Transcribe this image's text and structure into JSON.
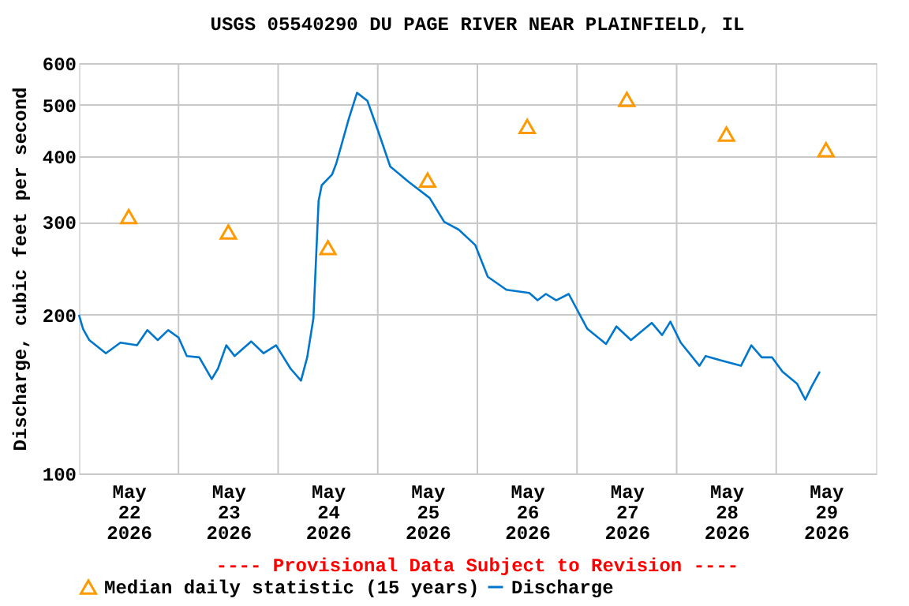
{
  "chart_data": {
    "type": "line",
    "title": "USGS 05540290 DU PAGE RIVER NEAR PLAINFIELD, IL",
    "ylabel": "Discharge, cubic feet per second",
    "annotations": [
      "---- Provisional Data Subject to Revision ----"
    ],
    "log": "y",
    "grid": true,
    "legend": "bottom",
    "ylim": [
      100,
      600
    ],
    "yticks": [
      100,
      200,
      300,
      400,
      500,
      600
    ],
    "xlim": [
      "2026-05-22T00:00",
      "2026-05-30T00:00"
    ],
    "xticks": [
      {
        "value": "2026-05-22T12:00",
        "label": "May\n22\n2026"
      },
      {
        "value": "2026-05-23T00:00",
        "label": null
      },
      {
        "value": "2026-05-23T12:00",
        "label": "May\n23\n2026"
      },
      {
        "value": "2026-05-24T00:00",
        "label": null
      },
      {
        "value": "2026-05-24T12:00",
        "label": "May\n24\n2026"
      },
      {
        "value": "2026-05-25T00:00",
        "label": null
      },
      {
        "value": "2026-05-25T12:00",
        "label": "May\n25\n2026"
      },
      {
        "value": "2026-05-26T00:00",
        "label": null
      },
      {
        "value": "2026-05-26T12:00",
        "label": "May\n26\n2026"
      },
      {
        "value": "2026-05-27T00:00",
        "label": null
      },
      {
        "value": "2026-05-27T12:00",
        "label": "May\n27\n2026"
      },
      {
        "value": "2026-05-28T00:00",
        "label": null
      },
      {
        "value": "2026-05-28T12:00",
        "label": "May\n28\n2026"
      },
      {
        "value": "2026-05-29T00:00",
        "label": null
      },
      {
        "value": "2026-05-29T12:00",
        "label": "May\n29\n2026"
      }
    ],
    "series": [
      {
        "name": "Median daily statistic (15 years)",
        "type": "scatter",
        "marker": "triangle",
        "color": "#ff9900",
        "x": [
          "2026-05-22T12:00",
          "2026-05-23T12:00",
          "2026-05-24T12:00",
          "2026-05-25T12:00",
          "2026-05-26T12:00",
          "2026-05-27T12:00",
          "2026-05-28T12:00",
          "2026-05-29T12:00"
        ],
        "values": [
          307,
          287,
          268,
          360,
          455,
          512,
          440,
          411
        ]
      },
      {
        "name": "Discharge",
        "marker": "none",
        "color": "#0077cc",
        "x": [
          "2026-05-22T00:00",
          "2026-05-22T01:00",
          "2026-05-22T02:30",
          "2026-05-22T06:30",
          "2026-05-22T10:00",
          "2026-05-22T14:00",
          "2026-05-22T16:30",
          "2026-05-22T19:00",
          "2026-05-22T21:30",
          "2026-05-23T00:00",
          "2026-05-23T02:00",
          "2026-05-23T05:00",
          "2026-05-23T08:00",
          "2026-05-23T09:30",
          "2026-05-23T11:30",
          "2026-05-23T13:30",
          "2026-05-23T17:30",
          "2026-05-23T20:30",
          "2026-05-23T23:30",
          "2026-05-24T03:00",
          "2026-05-24T05:30",
          "2026-05-24T07:00",
          "2026-05-24T08:30",
          "2026-05-24T09:00",
          "2026-05-24T09:45",
          "2026-05-24T10:30",
          "2026-05-24T13:00",
          "2026-05-24T14:00",
          "2026-05-24T17:00",
          "2026-05-24T19:00",
          "2026-05-24T21:30",
          "2026-05-25T00:00",
          "2026-05-25T03:00",
          "2026-05-25T07:30",
          "2026-05-25T12:30",
          "2026-05-25T16:00",
          "2026-05-25T19:30",
          "2026-05-25T23:30",
          "2026-05-26T02:30",
          "2026-05-26T07:00",
          "2026-05-26T12:30",
          "2026-05-26T14:30",
          "2026-05-26T16:30",
          "2026-05-26T19:00",
          "2026-05-26T22:00",
          "2026-05-27T02:30",
          "2026-05-27T07:00",
          "2026-05-27T09:30",
          "2026-05-27T13:00",
          "2026-05-27T18:00",
          "2026-05-27T20:30",
          "2026-05-27T22:30",
          "2026-05-28T01:00",
          "2026-05-28T05:30",
          "2026-05-28T07:00",
          "2026-05-28T10:30",
          "2026-05-28T15:30",
          "2026-05-28T18:00",
          "2026-05-28T20:30",
          "2026-05-28T23:00",
          "2026-05-29T01:30",
          "2026-05-29T05:00",
          "2026-05-29T07:00",
          "2026-05-29T08:30",
          "2026-05-29T10:30"
        ],
        "values": [
          200,
          188,
          179,
          169,
          177,
          175,
          187,
          179,
          187,
          181,
          167,
          166,
          151,
          158,
          175,
          167,
          178,
          169,
          175,
          158,
          150,
          166,
          197,
          242,
          329,
          352,
          369,
          387,
          470,
          527,
          509,
          448,
          382,
          357,
          333,
          300,
          290,
          271,
          236,
          223,
          220,
          213,
          219,
          213,
          219,
          188,
          176,
          190,
          179,
          193,
          183,
          194,
          177,
          160,
          167,
          164,
          160,
          175,
          166,
          166,
          156,
          148,
          138,
          146,
          156
        ]
      }
    ]
  }
}
